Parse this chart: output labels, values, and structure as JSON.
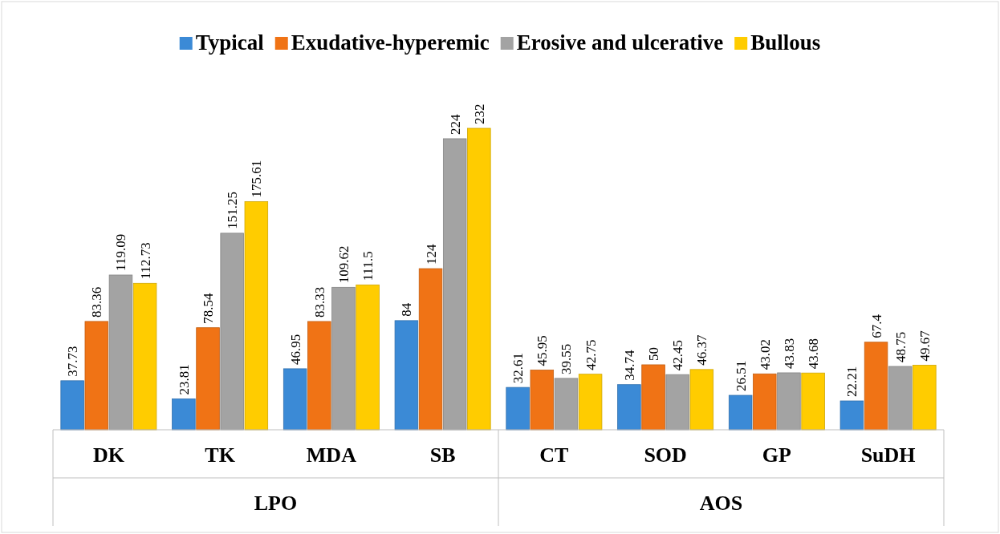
{
  "chart_data": {
    "type": "bar",
    "categories": [
      "DK",
      "TK",
      "MDA",
      "SB",
      "CT",
      "SOD",
      "GP",
      "SuDH"
    ],
    "series": [
      {
        "name": "Typical",
        "color": "#3b8ad6",
        "values": [
          37.73,
          23.81,
          46.95,
          84,
          32.61,
          34.74,
          26.51,
          22.21
        ]
      },
      {
        "name": "Exudative-hyperemic",
        "color": "#f07315",
        "values": [
          83.36,
          78.54,
          83.33,
          124,
          45.95,
          50,
          43.02,
          67.4
        ]
      },
      {
        "name": "Erosive and ulcerative",
        "color": "#a3a3a3",
        "values": [
          119.09,
          151.25,
          109.62,
          224,
          39.55,
          42.45,
          43.83,
          48.75
        ]
      },
      {
        "name": "Bullous",
        "color": "#ffcc00",
        "values": [
          112.73,
          175.61,
          111.5,
          232,
          42.75,
          46.37,
          43.68,
          49.67
        ]
      }
    ],
    "annotations": [
      "LPO",
      "AOS"
    ],
    "data_labels": true,
    "legend": "top"
  }
}
